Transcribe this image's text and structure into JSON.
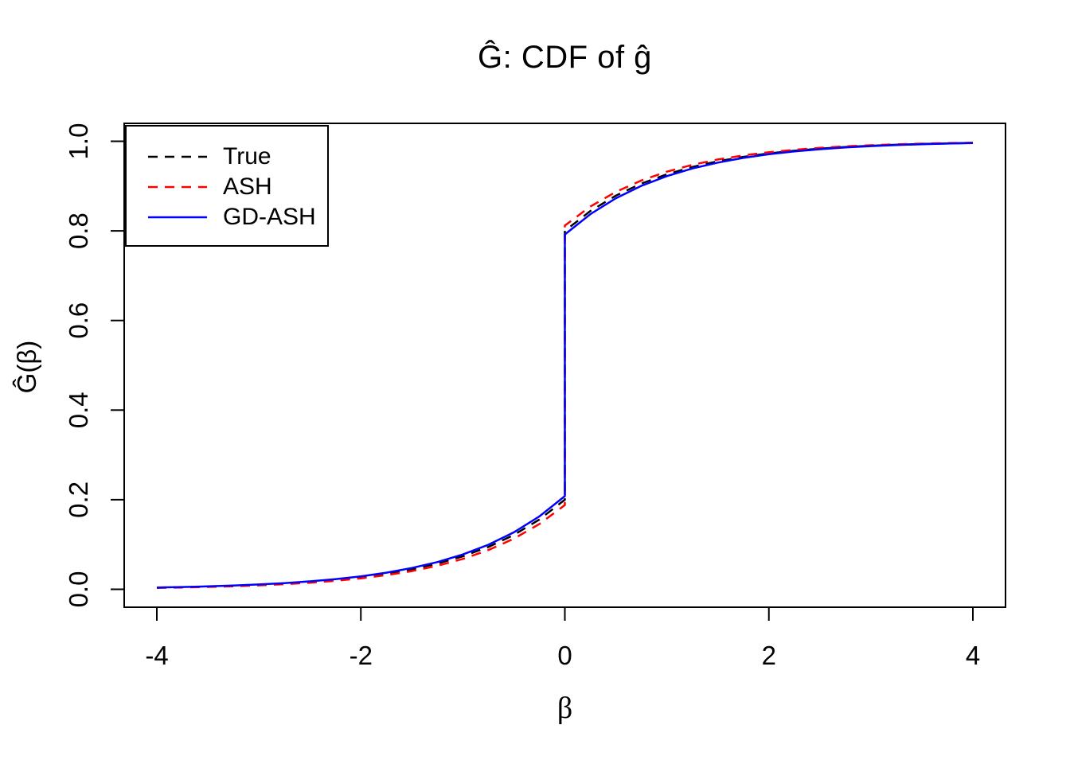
{
  "chart_data": {
    "type": "line",
    "title": "Ĝ: CDF of ĝ",
    "xlabel": "β",
    "ylabel": "Ĝ(β)",
    "xlim": [
      -4,
      4
    ],
    "ylim": [
      0,
      1
    ],
    "x_ticks": [
      -4,
      -2,
      0,
      2,
      4
    ],
    "x_tick_labels": [
      "-4",
      "-2",
      "0",
      "2",
      "4"
    ],
    "y_ticks": [
      0.0,
      0.2,
      0.4,
      0.6,
      0.8,
      1.0
    ],
    "y_tick_labels": [
      "0.0",
      "0.2",
      "0.4",
      "0.6",
      "0.8",
      "1.0"
    ],
    "grid": false,
    "legend_position": "topleft",
    "note": "Mixture CDF with point mass at 0; each series lists duplicate x=0 points for the jump",
    "x": [
      -4,
      -3.75,
      -3.5,
      -3.25,
      -3,
      -2.75,
      -2.5,
      -2.25,
      -2,
      -1.75,
      -1.5,
      -1.25,
      -1,
      -0.75,
      -0.5,
      -0.25,
      0,
      0,
      0.25,
      0.5,
      0.75,
      1,
      1.25,
      1.5,
      1.75,
      2,
      2.25,
      2.5,
      2.75,
      3,
      3.25,
      3.5,
      3.75,
      4
    ],
    "series": [
      {
        "name": "True",
        "color": "#000000",
        "style": "dashed",
        "jump": {
          "at": 0,
          "from": 0.2,
          "to": 0.8
        },
        "y": [
          0.0037,
          0.0047,
          0.006,
          0.0078,
          0.01,
          0.0128,
          0.0164,
          0.0211,
          0.0271,
          0.0348,
          0.0446,
          0.0573,
          0.0736,
          0.0945,
          0.1213,
          0.1558,
          0.2,
          0.8,
          0.8442,
          0.8787,
          0.9055,
          0.9264,
          0.9427,
          0.9554,
          0.9652,
          0.9729,
          0.9789,
          0.9836,
          0.9872,
          0.99,
          0.9922,
          0.994,
          0.9953,
          0.9963
        ]
      },
      {
        "name": "ASH",
        "color": "#FF0000",
        "style": "dashed",
        "jump": {
          "at": 0,
          "from": 0.188,
          "to": 0.812
        },
        "y": [
          0.0032,
          0.0041,
          0.0053,
          0.0068,
          0.0088,
          0.0114,
          0.0147,
          0.019,
          0.0244,
          0.0315,
          0.0407,
          0.0525,
          0.0678,
          0.0875,
          0.1129,
          0.1457,
          0.188,
          0.812,
          0.8543,
          0.8871,
          0.9125,
          0.9322,
          0.9475,
          0.9593,
          0.9685,
          0.9756,
          0.981,
          0.9853,
          0.9886,
          0.9912,
          0.9932,
          0.9947,
          0.9959,
          0.9968
        ]
      },
      {
        "name": "GD-ASH",
        "color": "#0000FF",
        "style": "solid",
        "jump": {
          "at": 0,
          "from": 0.208,
          "to": 0.792
        },
        "y": [
          0.0041,
          0.0052,
          0.0066,
          0.0085,
          0.0108,
          0.0139,
          0.0177,
          0.0227,
          0.029,
          0.0371,
          0.0475,
          0.0607,
          0.0777,
          0.0994,
          0.1271,
          0.1626,
          0.208,
          0.792,
          0.8374,
          0.8729,
          0.9006,
          0.9223,
          0.9393,
          0.9525,
          0.9629,
          0.971,
          0.9773,
          0.9823,
          0.9861,
          0.9892,
          0.9915,
          0.9934,
          0.9948,
          0.9959
        ]
      }
    ]
  }
}
